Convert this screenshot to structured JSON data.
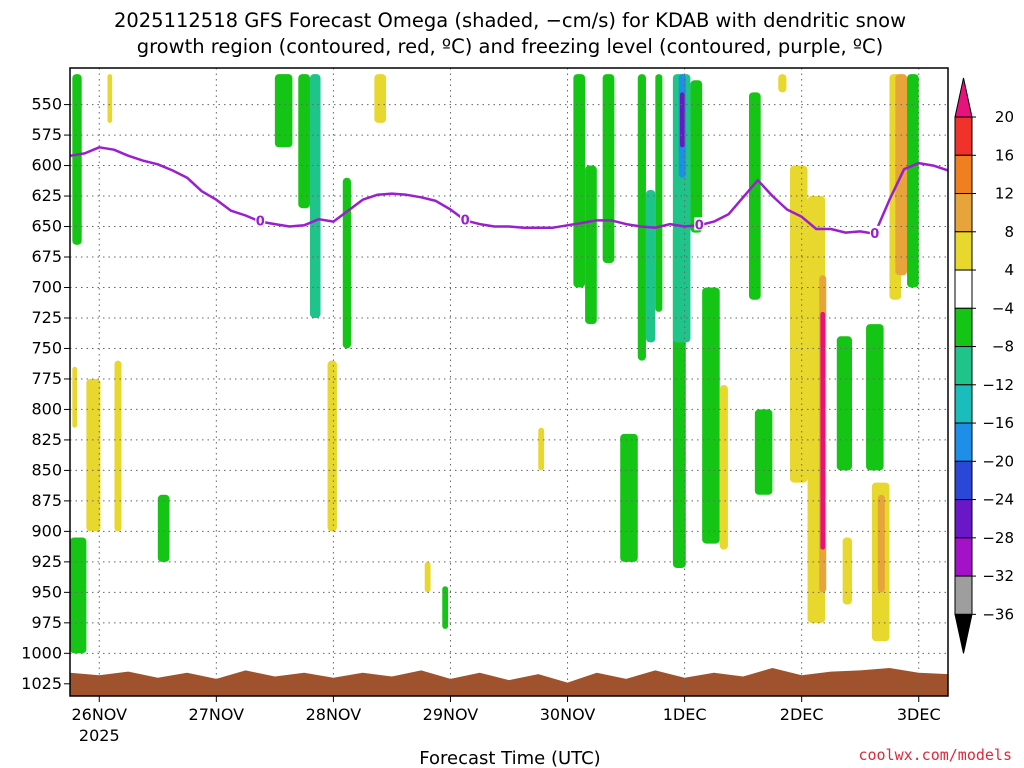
{
  "title_line1": "2025112518 GFS Forecast Omega (shaded, −cm/s) for KDAB with dendritic snow",
  "title_line2": "growth region (contoured, red, ºC) and freezing level (contoured, purple, ºC)",
  "credit": "coolwx.com/models",
  "colors": {
    "freezing_level": "#9a1fcf",
    "terrain": "#a0522d",
    "grid": "#666666"
  },
  "chart_data": {
    "type": "heatmap",
    "xlabel": "Forecast Time (UTC)",
    "ylabel": "",
    "x_ticks": [
      "26NOV",
      "27NOV",
      "28NOV",
      "29NOV",
      "30NOV",
      "1DEC",
      "2DEC",
      "3DEC"
    ],
    "x_year_label": "2025",
    "x_range": [
      "2025-11-25T18",
      "2025-12-03T06"
    ],
    "y_ticks": [
      550,
      575,
      600,
      625,
      650,
      675,
      700,
      725,
      750,
      775,
      800,
      825,
      850,
      875,
      900,
      925,
      950,
      975,
      1000,
      1025
    ],
    "y_range": [
      1035,
      520
    ],
    "y_axis": "pressure (hPa), decreasing upward",
    "colorbar": {
      "labels": [
        "20",
        "16",
        "12",
        "8",
        "4",
        "−4",
        "−8",
        "−12",
        "−16",
        "−20",
        "−24",
        "−28",
        "−32",
        "−36"
      ],
      "bins": [
        {
          "range": ">20",
          "color": "#e8127d"
        },
        {
          "range": "16 to 20",
          "color": "#f0322b"
        },
        {
          "range": "12 to 16",
          "color": "#ef7f1f"
        },
        {
          "range": "8 to 12",
          "color": "#e6a43a"
        },
        {
          "range": "4 to 8",
          "color": "#e8d72c"
        },
        {
          "range": "-4 to 4",
          "color": "#ffffff"
        },
        {
          "range": "-8 to -4",
          "color": "#15c515"
        },
        {
          "range": "-12 to -8",
          "color": "#1ec48a"
        },
        {
          "range": "-16 to -12",
          "color": "#1bbcbc"
        },
        {
          "range": "-20 to -16",
          "color": "#1e8fe8"
        },
        {
          "range": "-24 to -20",
          "color": "#2a47d8"
        },
        {
          "range": "-28 to -24",
          "color": "#6a17c8"
        },
        {
          "range": "-32 to -28",
          "color": "#a412c8"
        },
        {
          "range": "-36 to -32",
          "color": "#9e9e9e"
        },
        {
          "range": "<-36",
          "color": "#000000"
        }
      ]
    },
    "freezing_level": {
      "label": "0",
      "x": [
        "2025-11-25T18",
        "2025-11-25T21",
        "2025-11-26T00",
        "2025-11-26T03",
        "2025-11-26T06",
        "2025-11-26T09",
        "2025-11-26T12",
        "2025-11-26T15",
        "2025-11-26T18",
        "2025-11-26T21",
        "2025-11-27T00",
        "2025-11-27T03",
        "2025-11-27T06",
        "2025-11-27T09",
        "2025-11-27T12",
        "2025-11-27T15",
        "2025-11-27T18",
        "2025-11-27T21",
        "2025-11-28T00",
        "2025-11-28T03",
        "2025-11-28T06",
        "2025-11-28T09",
        "2025-11-28T12",
        "2025-11-28T15",
        "2025-11-28T18",
        "2025-11-28T21",
        "2025-11-29T00",
        "2025-11-29T03",
        "2025-11-29T06",
        "2025-11-29T09",
        "2025-11-29T12",
        "2025-11-29T15",
        "2025-11-29T18",
        "2025-11-29T21",
        "2025-11-30T00",
        "2025-11-30T03",
        "2025-11-30T06",
        "2025-11-30T09",
        "2025-11-30T12",
        "2025-11-30T15",
        "2025-11-30T18",
        "2025-11-30T21",
        "2025-12-01T00",
        "2025-12-01T03",
        "2025-12-01T06",
        "2025-12-01T09",
        "2025-12-01T12",
        "2025-12-01T15",
        "2025-12-01T18",
        "2025-12-01T21",
        "2025-12-02T00",
        "2025-12-02T03",
        "2025-12-02T06",
        "2025-12-02T09",
        "2025-12-02T12",
        "2025-12-02T15",
        "2025-12-02T18",
        "2025-12-02T21",
        "2025-12-03T00",
        "2025-12-03T03",
        "2025-12-03T06"
      ],
      "p": [
        592,
        590,
        585,
        587,
        592,
        596,
        599,
        604,
        610,
        621,
        628,
        637,
        641,
        646,
        648,
        650,
        649,
        644,
        646,
        637,
        628,
        624,
        623,
        624,
        626,
        629,
        636,
        645,
        648,
        650,
        650,
        651,
        651,
        651,
        649,
        647,
        645,
        645,
        648,
        650,
        651,
        648,
        650,
        649,
        646,
        640,
        626,
        612,
        625,
        636,
        642,
        652,
        652,
        655,
        654,
        656,
        628,
        603,
        598,
        600,
        604
      ]
    },
    "terrain_top_hPa": [
      1016,
      1018,
      1015,
      1020,
      1016,
      1021,
      1014,
      1019,
      1016,
      1020,
      1016,
      1019,
      1014,
      1021,
      1016,
      1022,
      1017,
      1024,
      1016,
      1021,
      1014,
      1020,
      1016,
      1019,
      1012,
      1018,
      1015,
      1014,
      1012,
      1016,
      1017
    ],
    "regions": [
      {
        "t": [
          0.02,
          0.1
        ],
        "p": [
          525,
          665
        ],
        "bin": "-8 to -4"
      },
      {
        "t": [
          0.0,
          0.14
        ],
        "p": [
          905,
          1000
        ],
        "bin": "-8 to -4"
      },
      {
        "t": [
          0.02,
          0.06
        ],
        "p": [
          765,
          815
        ],
        "bin": "4 to 8"
      },
      {
        "t": [
          0.14,
          0.26
        ],
        "p": [
          775,
          900
        ],
        "bin": "4 to 8"
      },
      {
        "t": [
          0.32,
          0.36
        ],
        "p": [
          525,
          565
        ],
        "bin": "4 to 8"
      },
      {
        "t": [
          0.38,
          0.44
        ],
        "p": [
          760,
          900
        ],
        "bin": "4 to 8"
      },
      {
        "t": [
          0.75,
          0.85
        ],
        "p": [
          870,
          925
        ],
        "bin": "-8 to -4"
      },
      {
        "t": [
          1.75,
          1.9
        ],
        "p": [
          525,
          585
        ],
        "bin": "-8 to -4"
      },
      {
        "t": [
          1.95,
          2.05
        ],
        "p": [
          525,
          635
        ],
        "bin": "-8 to -4"
      },
      {
        "t": [
          2.05,
          2.14
        ],
        "p": [
          525,
          725
        ],
        "bin": "-12 to -8"
      },
      {
        "t": [
          2.2,
          2.28
        ],
        "p": [
          760,
          900
        ],
        "bin": "4 to 8"
      },
      {
        "t": [
          2.33,
          2.4
        ],
        "p": [
          610,
          750
        ],
        "bin": "-8 to -4"
      },
      {
        "t": [
          2.6,
          2.7
        ],
        "p": [
          525,
          565
        ],
        "bin": "4 to 8"
      },
      {
        "t": [
          3.03,
          3.08
        ],
        "p": [
          925,
          950
        ],
        "bin": "4 to 8"
      },
      {
        "t": [
          3.18,
          3.23
        ],
        "p": [
          945,
          980
        ],
        "bin": "-8 to -4"
      },
      {
        "t": [
          4.0,
          4.05
        ],
        "p": [
          815,
          850
        ],
        "bin": "4 to 8"
      },
      {
        "t": [
          4.3,
          4.4
        ],
        "p": [
          525,
          700
        ],
        "bin": "-8 to -4"
      },
      {
        "t": [
          4.4,
          4.5
        ],
        "p": [
          600,
          730
        ],
        "bin": "-8 to -4"
      },
      {
        "t": [
          4.55,
          4.65
        ],
        "p": [
          525,
          680
        ],
        "bin": "-8 to -4"
      },
      {
        "t": [
          4.7,
          4.85
        ],
        "p": [
          820,
          925
        ],
        "bin": "-8 to -4"
      },
      {
        "t": [
          4.85,
          4.92
        ],
        "p": [
          525,
          760
        ],
        "bin": "-8 to -4"
      },
      {
        "t": [
          4.92,
          5.0
        ],
        "p": [
          620,
          745
        ],
        "bin": "-12 to -8"
      },
      {
        "t": [
          5.0,
          5.06
        ],
        "p": [
          525,
          720
        ],
        "bin": "-8 to -4"
      },
      {
        "t": [
          5.15,
          5.26
        ],
        "p": [
          650,
          930
        ],
        "bin": "-8 to -4"
      },
      {
        "t": [
          5.15,
          5.3
        ],
        "p": [
          525,
          745
        ],
        "bin": "-12 to -8"
      },
      {
        "t": [
          5.2,
          5.26
        ],
        "p": [
          525,
          610
        ],
        "bin": "-20 to -16"
      },
      {
        "t": [
          5.21,
          5.25
        ],
        "p": [
          540,
          585
        ],
        "bin": "-28 to -24"
      },
      {
        "t": [
          5.3,
          5.4
        ],
        "p": [
          530,
          655
        ],
        "bin": "-8 to -4"
      },
      {
        "t": [
          5.4,
          5.55
        ],
        "p": [
          700,
          910
        ],
        "bin": "-8 to -4"
      },
      {
        "t": [
          5.55,
          5.62
        ],
        "p": [
          780,
          915
        ],
        "bin": "4 to 8"
      },
      {
        "t": [
          5.8,
          5.9
        ],
        "p": [
          540,
          710
        ],
        "bin": "-8 to -4"
      },
      {
        "t": [
          5.85,
          6.0
        ],
        "p": [
          800,
          870
        ],
        "bin": "-8 to -4"
      },
      {
        "t": [
          6.05,
          6.12
        ],
        "p": [
          525,
          540
        ],
        "bin": "4 to 8"
      },
      {
        "t": [
          6.15,
          6.3
        ],
        "p": [
          600,
          860
        ],
        "bin": "4 to 8"
      },
      {
        "t": [
          6.3,
          6.45
        ],
        "p": [
          625,
          975
        ],
        "bin": "4 to 8"
      },
      {
        "t": [
          6.4,
          6.46
        ],
        "p": [
          690,
          950
        ],
        "bin": "8 to 12"
      },
      {
        "t": [
          6.41,
          6.45
        ],
        "p": [
          720,
          915
        ],
        "bin": ">20"
      },
      {
        "t": [
          6.55,
          6.68
        ],
        "p": [
          740,
          850
        ],
        "bin": "-8 to -4"
      },
      {
        "t": [
          6.6,
          6.68
        ],
        "p": [
          905,
          960
        ],
        "bin": "4 to 8"
      },
      {
        "t": [
          6.8,
          6.95
        ],
        "p": [
          730,
          850
        ],
        "bin": "-8 to -4"
      },
      {
        "t": [
          6.85,
          7.0
        ],
        "p": [
          860,
          990
        ],
        "bin": "4 to 8"
      },
      {
        "t": [
          6.9,
          6.96
        ],
        "p": [
          870,
          950
        ],
        "bin": "8 to 12"
      },
      {
        "t": [
          7.0,
          7.1
        ],
        "p": [
          525,
          710
        ],
        "bin": "4 to 8"
      },
      {
        "t": [
          7.05,
          7.15
        ],
        "p": [
          525,
          690
        ],
        "bin": "8 to 12"
      },
      {
        "t": [
          7.15,
          7.25
        ],
        "p": [
          525,
          700
        ],
        "bin": "-8 to -4"
      }
    ]
  }
}
